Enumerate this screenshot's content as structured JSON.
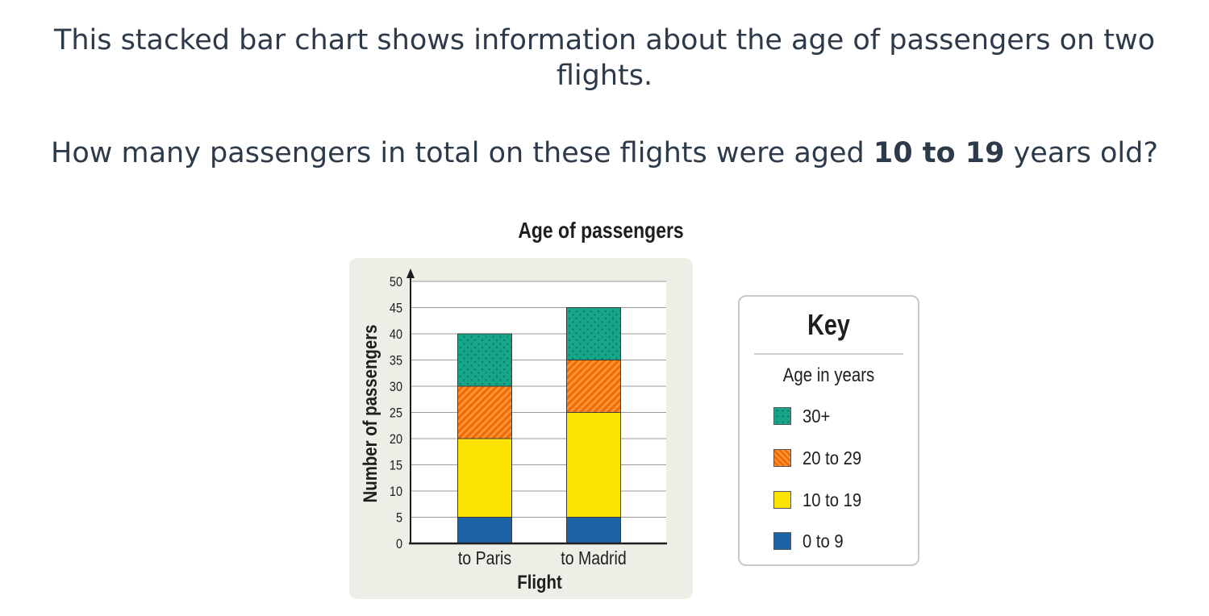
{
  "question": {
    "line1": "This stacked bar chart shows information about the age of passengers on two",
    "line1b": "flights.",
    "line2_pre": "How many passengers in total on these flights were aged ",
    "line2_bold": "10 to 19",
    "line2_post": " years old?"
  },
  "key": {
    "title": "Key",
    "subtitle": "Age in years"
  },
  "colors": {
    "age_30_plus": "#17a589",
    "age_20_29": "#f06a10",
    "age_10_19": "#fce200",
    "age_0_9": "#1d63a8",
    "panel": "#efeee6"
  },
  "chart_data": {
    "type": "bar",
    "stacked": true,
    "title": "Age of passengers",
    "xlabel": "Flight",
    "ylabel": "Number of passengers",
    "categories": [
      "to Paris",
      "to Madrid"
    ],
    "ylim": [
      0,
      50
    ],
    "yticks": [
      0,
      5,
      10,
      15,
      20,
      25,
      30,
      35,
      40,
      45,
      50
    ],
    "grid": true,
    "legend_position": "right",
    "series": [
      {
        "name": "0 to 9",
        "values": [
          5,
          5
        ]
      },
      {
        "name": "10 to 19",
        "values": [
          15,
          20
        ]
      },
      {
        "name": "20 to 29",
        "values": [
          10,
          10
        ]
      },
      {
        "name": "30+",
        "values": [
          10,
          10
        ]
      }
    ]
  }
}
